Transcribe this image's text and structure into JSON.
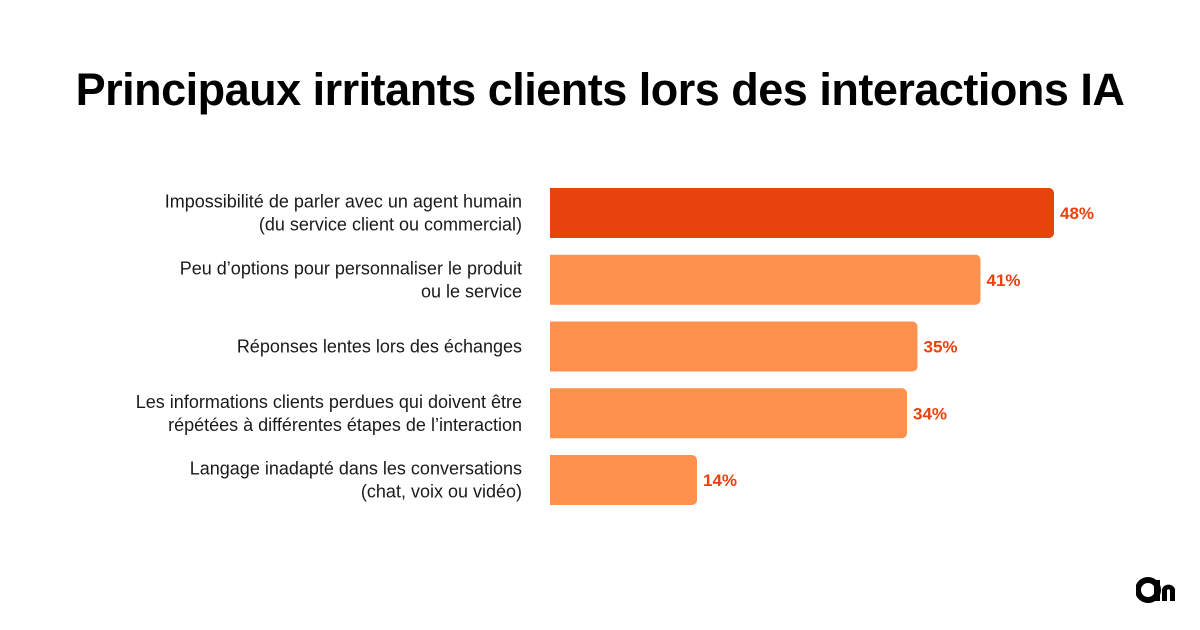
{
  "title": "Principaux irritants clients lors des interactions IA",
  "colors": {
    "highlight": "#E8420E",
    "bar": "#FF914D",
    "value_text": "#E8420E"
  },
  "logo_icon": "brand-logo-icon",
  "chart_data": {
    "type": "bar",
    "orientation": "horizontal",
    "title": "Principaux irritants clients lors des interactions IA",
    "xlabel": "",
    "ylabel": "",
    "xlim": [
      0,
      100
    ],
    "grid": false,
    "categories": [
      [
        "Impossibilité de parler avec un agent humain",
        "(du service client ou commercial)"
      ],
      [
        "Peu d’options pour personnaliser le produit",
        "ou le service"
      ],
      [
        "Réponses lentes lors des échanges"
      ],
      [
        "Les informations clients perdues qui doivent être",
        "répétées à différentes étapes de l’interaction"
      ],
      [
        "Langage inadapté dans les conversations",
        "(chat, voix ou vidéo)"
      ]
    ],
    "values": [
      48,
      41,
      35,
      34,
      14
    ],
    "value_labels": [
      "48%",
      "41%",
      "35%",
      "34%",
      "14%"
    ],
    "highlight_index": 0
  }
}
